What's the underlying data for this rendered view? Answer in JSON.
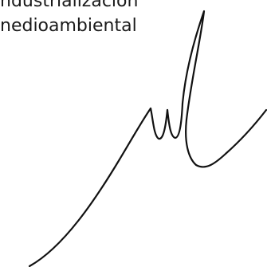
{
  "document": {
    "lines": [
      "ndustrialización",
      "nedioambiental"
    ]
  },
  "signature": {
    "icon": "handwritten-signature",
    "color": "#111111"
  }
}
